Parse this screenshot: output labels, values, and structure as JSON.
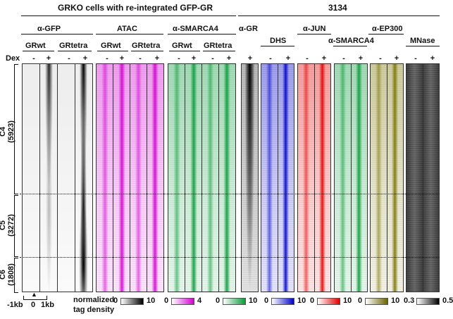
{
  "titles": {
    "left": "GRKO cells with re-integrated GFP-GR",
    "right": "3134"
  },
  "group_labels": {
    "gfp": "α-GFP",
    "atac": "ATAC",
    "smarca4_left": "α-SMARCA4",
    "gr": "α-GR",
    "dhs": "DHS",
    "jun": "α-JUN",
    "smarca4_right": "α-SMARCA4",
    "ep300": "α-EP300",
    "mnase": "MNase"
  },
  "sub_labels": {
    "grwt": "GRwt",
    "grtetra": "GRtetra"
  },
  "dex_label": "Dex",
  "signs": {
    "minus": "-",
    "plus": "+"
  },
  "clusters": [
    {
      "name": "C4",
      "count": "(5923)"
    },
    {
      "name": "C5",
      "count": "(3272)"
    },
    {
      "name": "C6",
      "count": "(1808)"
    }
  ],
  "axis": {
    "left": "-1kb",
    "zero": "0",
    "right": "1kb"
  },
  "legend_title": [
    "normalized",
    "tag density"
  ],
  "colorbars": [
    {
      "min": "0",
      "max": "10",
      "color": "#000000"
    },
    {
      "min": "0",
      "max": "4",
      "color": "#d000d0"
    },
    {
      "min": "0",
      "max": "10",
      "color": "#0a9a3a"
    },
    {
      "min": "0",
      "max": "10",
      "color": "#0000c8"
    },
    {
      "min": "0",
      "max": "10",
      "color": "#e00000"
    },
    {
      "min": "0",
      "max": "10",
      "color": "#6b6400"
    },
    {
      "min": "0.3",
      "max": "0.5",
      "color": "#000000"
    }
  ],
  "heatmap_colors": {
    "gfp": "#000000",
    "atac": "#d000d0",
    "smarca4": "#0a9a3a",
    "gr": "#000000",
    "dhs": "#0000c8",
    "jun": "#e00000",
    "ep300": "#7a7300",
    "mnase": "#222222"
  }
}
